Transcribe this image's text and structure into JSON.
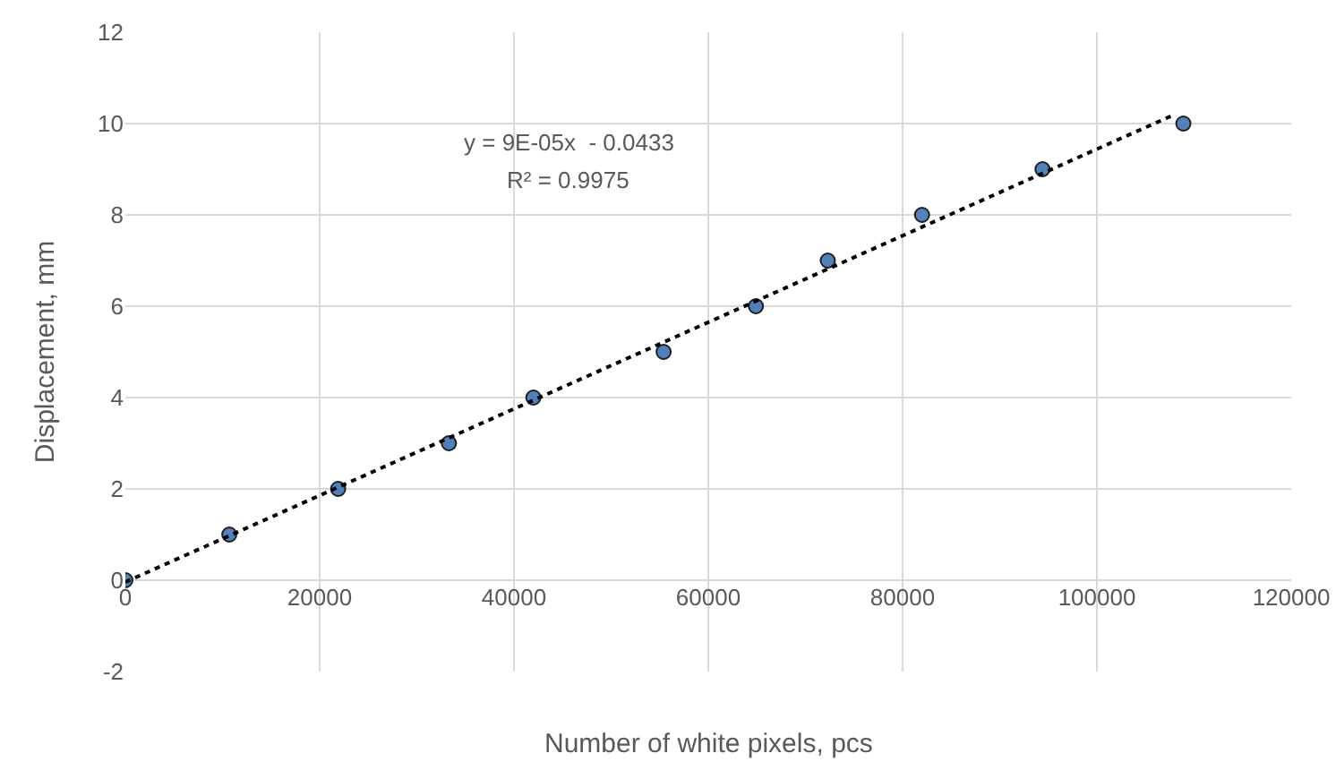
{
  "chart_data": {
    "type": "scatter",
    "x": [
      0,
      10700,
      21900,
      33300,
      42000,
      55400,
      64900,
      72300,
      82000,
      94400,
      108900
    ],
    "series": [
      {
        "color": "#4f81bd",
        "values": [
          0,
          1,
          2,
          3,
          4,
          5,
          6,
          7,
          8,
          9,
          10
        ],
        "marker": "circle"
      },
      {
        "type": "line",
        "color": "#000000",
        "x": [
          0,
          107900
        ],
        "values": [
          -0.04,
          10.19
        ],
        "line_style": "dotted",
        "marker": "none"
      }
    ],
    "xlabel": "Number of white pixels, pcs",
    "ylabel": "Displacement, mm",
    "xlim": [
      0,
      120000
    ],
    "xticks": [
      0,
      20000,
      40000,
      60000,
      80000,
      100000,
      120000
    ],
    "ylim": [
      -2,
      12
    ],
    "yticks": [
      -2,
      0,
      2,
      4,
      6,
      8,
      10,
      12
    ],
    "grid": true,
    "annotations": [
      "y = 9E-05x  - 0.0433",
      "R² = 0.9975"
    ]
  }
}
